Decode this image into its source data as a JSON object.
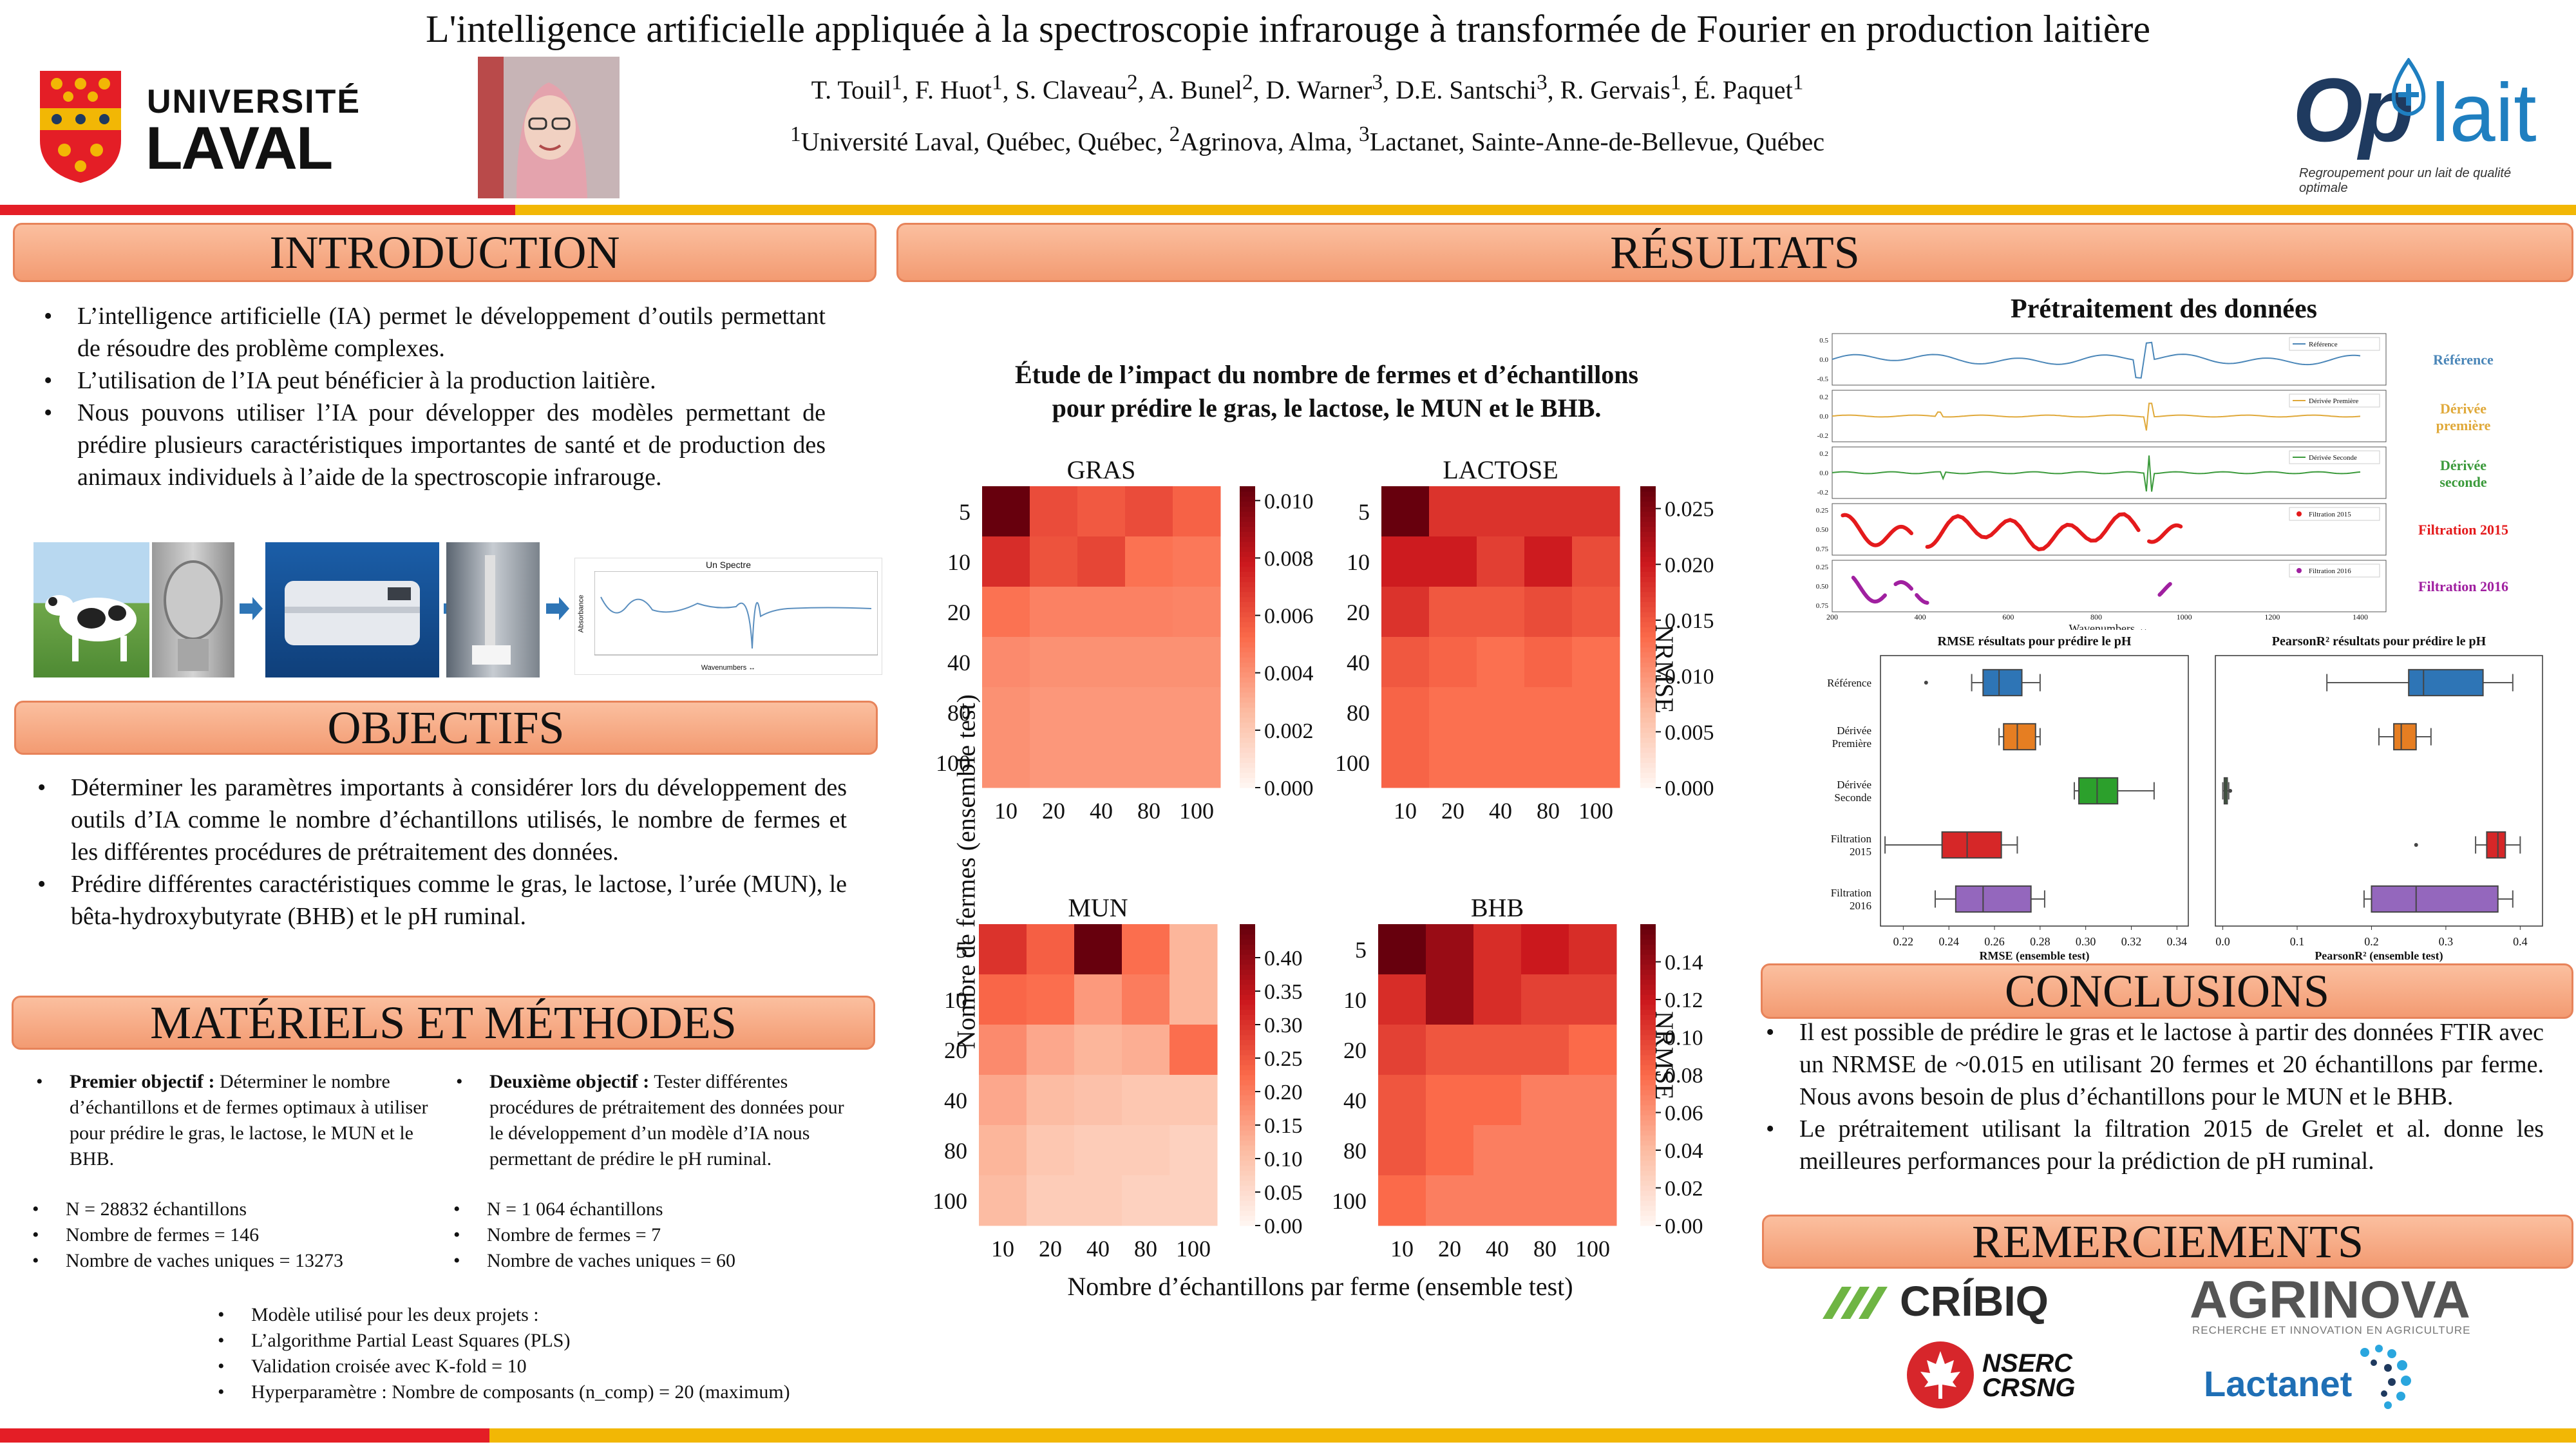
{
  "header": {
    "title": "L'intelligence artificielle appliquée à la spectroscopie infrarouge à transformée de Fourier en production laitière",
    "authors": [
      {
        "name": "T. Touil",
        "sup": "1"
      },
      {
        "name": "F. Huot",
        "sup": "1"
      },
      {
        "name": "S. Claveau",
        "sup": "2"
      },
      {
        "name": "A. Bunel",
        "sup": "2"
      },
      {
        "name": "D. Warner",
        "sup": "3"
      },
      {
        "name": "D.E. Santschi",
        "sup": "3"
      },
      {
        "name": "R. Gervais",
        "sup": "1"
      },
      {
        "name": "É. Paquet",
        "sup": "1"
      }
    ],
    "affil_1_sup": "1",
    "affil_1": "Université Laval, Québec, Québec, ",
    "affil_2_sup": "2",
    "affil_2": "Agrinova, Alma, ",
    "affil_3_sup": "3",
    "affil_3": "Lactanet, Sainte-Anne-de-Bellevue, Québec",
    "ulaval_line1": "UNIVERSITÉ",
    "ulaval_line2": "LAVAL",
    "oplait_text_op": "Op",
    "oplait_text_lait": "lait",
    "oplait_tagline": "Regroupement pour un lait de qualité optimale"
  },
  "colors": {
    "red": "#e41e26",
    "gold": "#f2b705",
    "accent": "#f39b72",
    "dark": "#1f3a5f"
  },
  "sections": {
    "intro": "INTRODUCTION",
    "objectifs": "OBJECTIFS",
    "materiels": "MATÉRIELS ET MÉTHODES",
    "resultats": "RÉSULTATS",
    "conclusions": "CONCLUSIONS",
    "remerciements": "REMERCIEMENTS"
  },
  "intro_bullets": [
    "L’intelligence artificielle (IA) permet le développement d’outils permettant de résoudre des problème complexes.",
    "L’utilisation de l’IA peut bénéficier à la production laitière.",
    "Nous pouvons utiliser l’IA pour développer des modèles permettant de prédire plusieurs caractéristiques importantes de santé et de production des animaux individuels à l’aide de la spectroscopie infrarouge."
  ],
  "intro_spectre": {
    "title": "Un Spectre",
    "ylabel": "Absorbance",
    "xlabel": "Wavenumbers ↔"
  },
  "objectifs_bullets": [
    "Déterminer les paramètres importants à considérer lors du développement des outils d’IA comme le nombre d’échantillons utilisés, le nombre de fermes et les différentes procédures de prétraitement des données.",
    "Prédire différentes caractéristiques comme le gras, le lactose, l’urée (MUN), le bêta-hydroxybutyrate (BHB) et le pH ruminal."
  ],
  "methods": {
    "obj1_bold": "Premier objectif :",
    "obj1_text": " Déterminer le nombre d’échantillons et de fermes optimaux à utiliser pour prédire le gras, le lactose, le MUN et le BHB.",
    "obj2_bold": "Deuxième objectif :",
    "obj2_text": " Tester différentes procédures de prétraitement des données pour le développement d’un modèle d’IA nous permettant de prédire le pH ruminal.",
    "obj1_list": [
      "N = 28832 échantillons",
      "Nombre de fermes = 146",
      "Nombre de vaches uniques = 13273"
    ],
    "obj2_list": [
      "N = 1 064 échantillons",
      "Nombre de fermes = 7",
      "Nombre de vaches uniques = 60"
    ],
    "model_intro": "Modèle utilisé pour les deux projets :",
    "model_list": [
      "L’algorithme Partial Least Squares (PLS)",
      "Validation croisée avec K-fold = 10",
      "Hyperparamètre : Nombre de composants (n_comp) = 20 (maximum)"
    ]
  },
  "heatmaps_section": {
    "title_line1": "Étude de l’impact du nombre de fermes et d’échantillons",
    "title_line2": "pour prédire le gras, le lactose, le MUN et le BHB.",
    "ylabel": "Nombre de fermes (ensemble test)",
    "xlabel": "Nombre d’échantillons par ferme (ensemble test)",
    "cbar_label": "NRMSE"
  },
  "chart_data": [
    {
      "type": "heatmap",
      "title": "GRAS",
      "x": [
        "10",
        "20",
        "40",
        "80",
        "100"
      ],
      "y": [
        "5",
        "10",
        "20",
        "40",
        "80",
        "100"
      ],
      "colorbar_ticks": [
        "0.000",
        "0.002",
        "0.004",
        "0.006",
        "0.008",
        "0.010"
      ],
      "vmin": 0,
      "vmax": 0.0105,
      "values": [
        [
          0.0105,
          0.0062,
          0.0058,
          0.0062,
          0.0055
        ],
        [
          0.0072,
          0.006,
          0.0064,
          0.005,
          0.0048
        ],
        [
          0.005,
          0.0045,
          0.0045,
          0.0045,
          0.0044
        ],
        [
          0.0042,
          0.004,
          0.004,
          0.004,
          0.004
        ],
        [
          0.004,
          0.0038,
          0.0038,
          0.0038,
          0.0038
        ],
        [
          0.004,
          0.0038,
          0.0038,
          0.0038,
          0.0038
        ]
      ]
    },
    {
      "type": "heatmap",
      "title": "LACTOSE",
      "x": [
        "10",
        "20",
        "40",
        "80",
        "100"
      ],
      "y": [
        "5",
        "10",
        "20",
        "40",
        "80",
        "100"
      ],
      "colorbar_ticks": [
        "0.000",
        "0.005",
        "0.010",
        "0.015",
        "0.020",
        "0.025"
      ],
      "vmin": 0,
      "vmax": 0.027,
      "values": [
        [
          0.027,
          0.018,
          0.018,
          0.018,
          0.018
        ],
        [
          0.02,
          0.02,
          0.017,
          0.02,
          0.016
        ],
        [
          0.018,
          0.015,
          0.015,
          0.016,
          0.015
        ],
        [
          0.015,
          0.014,
          0.013,
          0.014,
          0.013
        ],
        [
          0.014,
          0.013,
          0.013,
          0.013,
          0.013
        ],
        [
          0.014,
          0.013,
          0.013,
          0.013,
          0.013
        ]
      ]
    },
    {
      "type": "heatmap",
      "title": "MUN",
      "x": [
        "10",
        "20",
        "40",
        "80",
        "100"
      ],
      "y": [
        "5",
        "10",
        "20",
        "40",
        "80",
        "100"
      ],
      "colorbar_ticks": [
        "0.00",
        "0.05",
        "0.10",
        "0.15",
        "0.20",
        "0.25",
        "0.30",
        "0.35",
        "0.40"
      ],
      "vmin": 0,
      "vmax": 0.45,
      "values": [
        [
          0.3,
          0.24,
          0.45,
          0.22,
          0.12
        ],
        [
          0.23,
          0.22,
          0.16,
          0.2,
          0.12
        ],
        [
          0.18,
          0.14,
          0.12,
          0.13,
          0.22
        ],
        [
          0.14,
          0.11,
          0.1,
          0.09,
          0.09
        ],
        [
          0.12,
          0.09,
          0.08,
          0.08,
          0.07
        ],
        [
          0.11,
          0.08,
          0.08,
          0.07,
          0.07
        ]
      ]
    },
    {
      "type": "heatmap",
      "title": "BHB",
      "x": [
        "10",
        "20",
        "40",
        "80",
        "100"
      ],
      "y": [
        "5",
        "10",
        "20",
        "40",
        "80",
        "100"
      ],
      "colorbar_ticks": [
        "0.00",
        "0.02",
        "0.04",
        "0.06",
        "0.08",
        "0.10",
        "0.12",
        "0.14"
      ],
      "vmin": 0,
      "vmax": 0.16,
      "values": [
        [
          0.16,
          0.14,
          0.11,
          0.12,
          0.11
        ],
        [
          0.11,
          0.14,
          0.11,
          0.1,
          0.1
        ],
        [
          0.1,
          0.09,
          0.09,
          0.09,
          0.08
        ],
        [
          0.09,
          0.08,
          0.08,
          0.07,
          0.07
        ],
        [
          0.09,
          0.08,
          0.07,
          0.07,
          0.07
        ],
        [
          0.08,
          0.07,
          0.07,
          0.07,
          0.07
        ]
      ]
    },
    {
      "type": "line",
      "title": "Prétraitement des données",
      "xlabel": "Wavenumbers ↔",
      "x_ticks": [
        "200",
        "400",
        "600",
        "800",
        "1000",
        "1200",
        "1400"
      ],
      "series": [
        {
          "name": "Référence",
          "legend": "Référence",
          "color": "#4a86b8"
        },
        {
          "name": "Dérivée première",
          "legend": "Dérivée Première",
          "color": "#e0a93a"
        },
        {
          "name": "Dérivée seconde",
          "legend": "Dérivée Seconde",
          "color": "#3b9a3b"
        },
        {
          "name": "Filtration 2015",
          "legend": "Filtration 2015",
          "color": "#e41a1c"
        },
        {
          "name": "Filtration 2016",
          "legend": "Filtration 2016",
          "color": "#a020a0"
        }
      ],
      "yticks": [
        [
          "0.5",
          "0.0",
          "-0.5"
        ],
        [
          "0.2",
          "0.0",
          "-0.2"
        ],
        [
          "0.2",
          "0.0",
          "-0.2"
        ],
        [
          "0.25",
          "0.50",
          "0.75"
        ],
        [
          "0.25",
          "0.50",
          "0.75"
        ]
      ]
    },
    {
      "type": "box",
      "title": "RMSE résultats pour prédire le pH",
      "xlabel": "RMSE (ensemble test)",
      "x_ticks": [
        "0.22",
        "0.24",
        "0.26",
        "0.28",
        "0.30",
        "0.32",
        "0.34"
      ],
      "xlim": [
        0.21,
        0.345
      ],
      "categories": [
        "Référence",
        "Dérivée Première",
        "Dérivée Seconde",
        "Filtration 2015",
        "Filtration 2016"
      ],
      "boxes": [
        {
          "min": 0.25,
          "q1": 0.255,
          "median": 0.262,
          "q3": 0.272,
          "max": 0.28,
          "outliers": [
            0.23
          ],
          "color": "#2e75b6"
        },
        {
          "min": 0.262,
          "q1": 0.264,
          "median": 0.27,
          "q3": 0.278,
          "max": 0.28,
          "outliers": [],
          "color": "#e67e22"
        },
        {
          "min": 0.295,
          "q1": 0.297,
          "median": 0.305,
          "q3": 0.314,
          "max": 0.33,
          "outliers": [],
          "color": "#2ca02c"
        },
        {
          "min": 0.212,
          "q1": 0.237,
          "median": 0.248,
          "q3": 0.263,
          "max": 0.27,
          "outliers": [],
          "color": "#d62728"
        },
        {
          "min": 0.234,
          "q1": 0.243,
          "median": 0.255,
          "q3": 0.276,
          "max": 0.282,
          "outliers": [],
          "color": "#9467bd"
        }
      ]
    },
    {
      "type": "box",
      "title": "PearsonR² résultats pour prédire le pH",
      "xlabel": "PearsonR² (ensemble test)",
      "x_ticks": [
        "0.0",
        "0.1",
        "0.2",
        "0.3",
        "0.4"
      ],
      "xlim": [
        -0.01,
        0.43
      ],
      "categories": [
        "Référence",
        "Dérivée Première",
        "Dérivée Seconde",
        "Filtration 2015",
        "Filtration 2016"
      ],
      "boxes": [
        {
          "min": 0.14,
          "q1": 0.25,
          "median": 0.27,
          "q3": 0.35,
          "max": 0.39,
          "outliers": [],
          "color": "#2e75b6"
        },
        {
          "min": 0.21,
          "q1": 0.23,
          "median": 0.24,
          "q3": 0.26,
          "max": 0.28,
          "outliers": [],
          "color": "#e67e22"
        },
        {
          "min": 0.0,
          "q1": 0.002,
          "median": 0.004,
          "q3": 0.006,
          "max": 0.008,
          "outliers": [
            0.01
          ],
          "color": "#2ca02c"
        },
        {
          "min": 0.34,
          "q1": 0.355,
          "median": 0.37,
          "q3": 0.38,
          "max": 0.4,
          "outliers": [
            0.26
          ],
          "color": "#d62728"
        },
        {
          "min": 0.19,
          "q1": 0.2,
          "median": 0.26,
          "q3": 0.37,
          "max": 0.39,
          "outliers": [],
          "color": "#9467bd"
        }
      ]
    }
  ],
  "preproc_labels": [
    "Référence",
    "Dérivée première",
    "Dérivée seconde",
    "Filtration 2015",
    "Filtration 2016"
  ],
  "conclusions": [
    "Il est possible de prédire le gras et le lactose à partir des données FTIR avec un NRMSE de ~0.015 en utilisant 20 fermes et 20 échantillons par ferme. Nous avons besoin de plus d’échantillons pour le MUN et le BHB.",
    "Le prétraitement utilisant la filtration 2015 de Grelet et al. donne les meilleures performances pour la prédiction de pH ruminal."
  ],
  "sponsors": {
    "cribiq": "CRÍBIQ",
    "agrinova": "AGRINOVA",
    "agrinova_sub": "RECHERCHE ET INNOVATION EN AGRICULTURE",
    "nserc_1": "NSERC",
    "nserc_2": "CRSNG",
    "lactanet": "Lactanet"
  }
}
